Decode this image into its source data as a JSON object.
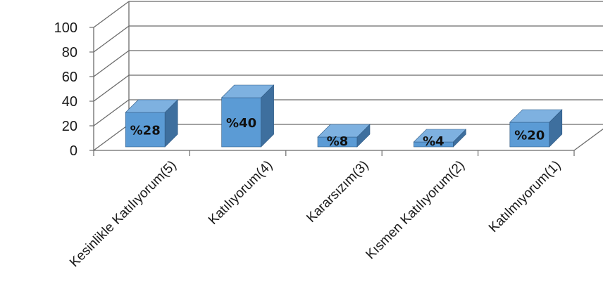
{
  "chart_data": {
    "type": "bar",
    "style": "3d-column",
    "categories": [
      "Kesinlikle Katılıyorum(5)",
      "Katılıyorum(4)",
      "Kararsızım(3)",
      "Kısmen Katılıyorum(2)",
      "Katılmıyorum(1)"
    ],
    "values": [
      28,
      40,
      8,
      4,
      20
    ],
    "data_labels": [
      "%28",
      "%40",
      "%8",
      "%4",
      "%20"
    ],
    "yticks": [
      "0",
      "20",
      "40",
      "60",
      "80",
      "100"
    ],
    "ylim": [
      0,
      100
    ],
    "grid": true,
    "legend": "none",
    "title": "",
    "xlabel": "",
    "ylabel": "",
    "colors": {
      "bar_front": "#5b9bd5",
      "bar_top": "#7eb1e0",
      "bar_side": "#3e6f9e",
      "bar_edge": "#2f5a85",
      "grid": "#6b6b6b"
    }
  }
}
